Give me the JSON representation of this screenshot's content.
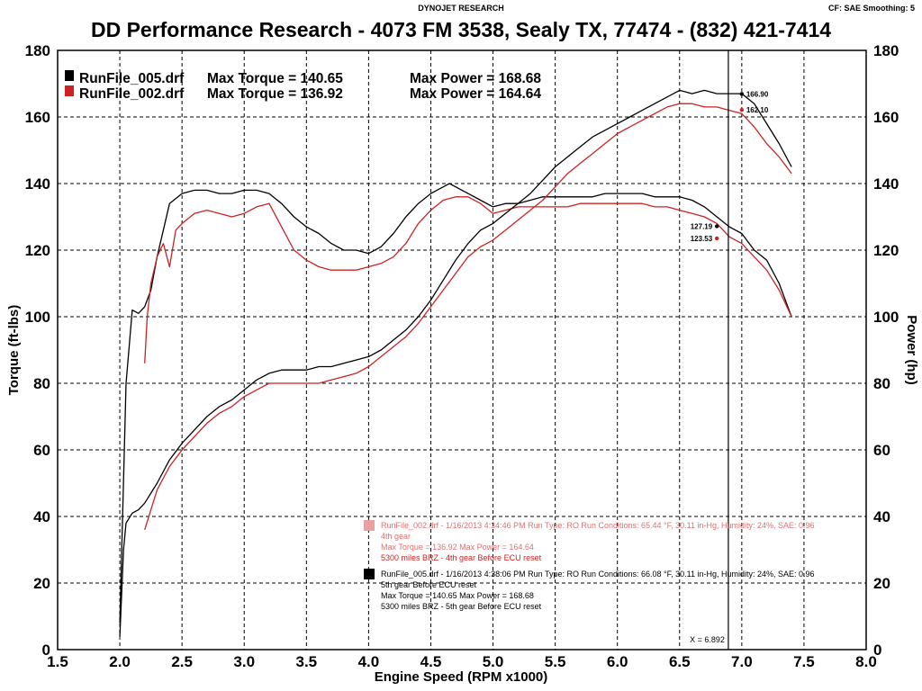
{
  "header": {
    "source": "DYNOJET RESEARCH",
    "settings": "CF: SAE  Smoothing: 5",
    "title": "DD Performance Research - 4073 FM 3538, Sealy TX, 77474 - (832) 421-7414"
  },
  "colors": {
    "run005": "#000000",
    "run002": "#cc2222",
    "run002_light": "#e07070",
    "grid": "#000000"
  },
  "legend_top": [
    {
      "file": "RunFile_005.drf",
      "torque_label": "Max Torque = 140.65",
      "power_label": "Max Power = 168.68",
      "color": "#000000"
    },
    {
      "file": "RunFile_002.drf",
      "torque_label": "Max Torque = 136.92",
      "power_label": "Max Power = 164.64",
      "color": "#cc2222"
    }
  ],
  "notes": [
    {
      "color": "#e07070",
      "lines": [
        "RunFile_002.drf - 1/16/2013 4:34:46 PM  Run Type: RO  Run Conditions: 65.44 °F, 30.11 in-Hg,  Humidity:  24%, SAE: 0.96",
        "4th gear",
        "Max Torque = 136.92  Max Power = 164.64",
        "5300 miles BRZ - 4th gear Before ECU reset"
      ]
    },
    {
      "color": "#000000",
      "lines": [
        "RunFile_005.drf - 1/16/2013 4:38:06 PM  Run Type: RO  Run Conditions: 66.08 °F, 30.11 in-Hg,  Humidity:  24%, SAE: 0.96",
        "5th gear Before ECU reset",
        "Max Torque = 140.65  Max Power = 168.68",
        "5300 miles BRZ - 5th gear Before ECU reset"
      ]
    }
  ],
  "cursor": {
    "x": 6.892,
    "label": "X = 6.892"
  },
  "chart_data": {
    "type": "line",
    "xlabel": "Engine Speed (RPM x1000)",
    "ylabel": "Torque (ft-lbs)",
    "ylabel_right": "Power (hp)",
    "xlim": [
      1.5,
      8.0
    ],
    "ylim": [
      0,
      180
    ],
    "x_ticks": [
      "1.5",
      "2.0",
      "2.5",
      "3.0",
      "3.5",
      "4.0",
      "4.5",
      "5.0",
      "5.5",
      "6.0",
      "6.5",
      "7.0",
      "7.5",
      "8.0"
    ],
    "y_ticks": [
      "0",
      "20",
      "40",
      "60",
      "80",
      "100",
      "120",
      "140",
      "160",
      "180"
    ],
    "grid": true,
    "series": [
      {
        "id": "t005",
        "color": "#000000",
        "x": [
          2.0,
          2.05,
          2.1,
          2.15,
          2.2,
          2.25,
          2.3,
          2.4,
          2.5,
          2.6,
          2.7,
          2.8,
          2.9,
          3.0,
          3.1,
          3.2,
          3.3,
          3.4,
          3.5,
          3.6,
          3.7,
          3.8,
          3.9,
          4.0,
          4.1,
          4.2,
          4.3,
          4.4,
          4.5,
          4.6,
          4.65,
          4.7,
          4.8,
          4.9,
          5.0,
          5.1,
          5.2,
          5.3,
          5.4,
          5.5,
          5.6,
          5.7,
          5.8,
          5.9,
          6.0,
          6.1,
          6.2,
          6.3,
          6.4,
          6.5,
          6.6,
          6.7,
          6.8,
          6.9,
          7.0,
          7.1,
          7.2,
          7.3,
          7.4
        ],
        "y": [
          8,
          80,
          102,
          101,
          103,
          108,
          118,
          134,
          137,
          138,
          138,
          137,
          137,
          138,
          138,
          137,
          134,
          130,
          127,
          125,
          122,
          120,
          120,
          119,
          121,
          125,
          130,
          134,
          137,
          139,
          140,
          139,
          137,
          135,
          133,
          134,
          134,
          135,
          136,
          136,
          136,
          136,
          136,
          137,
          137,
          137,
          137,
          136,
          136,
          136,
          135,
          133,
          130,
          127,
          125,
          120,
          117,
          110,
          100
        ]
      },
      {
        "id": "t002",
        "color": "#cc2222",
        "x": [
          2.2,
          2.22,
          2.25,
          2.3,
          2.35,
          2.4,
          2.45,
          2.5,
          2.6,
          2.7,
          2.8,
          2.9,
          3.0,
          3.1,
          3.2,
          3.3,
          3.4,
          3.5,
          3.6,
          3.7,
          3.8,
          3.9,
          4.0,
          4.1,
          4.2,
          4.3,
          4.4,
          4.5,
          4.6,
          4.7,
          4.8,
          4.9,
          5.0,
          5.1,
          5.2,
          5.3,
          5.4,
          5.5,
          5.6,
          5.7,
          5.8,
          5.9,
          6.0,
          6.1,
          6.2,
          6.3,
          6.4,
          6.5,
          6.6,
          6.7,
          6.8,
          6.9,
          7.0,
          7.1,
          7.2,
          7.3,
          7.4
        ],
        "y": [
          86,
          100,
          110,
          118,
          122,
          115,
          126,
          128,
          131,
          132,
          131,
          130,
          131,
          133,
          134,
          127,
          120,
          117,
          115,
          114,
          114,
          114,
          115,
          116,
          118,
          122,
          128,
          132,
          135,
          136,
          136,
          134,
          131,
          132,
          133,
          133,
          133,
          133,
          133,
          134,
          134,
          134,
          134,
          134,
          134,
          133,
          133,
          132,
          131,
          130,
          128,
          124,
          122,
          118,
          114,
          108,
          100
        ]
      },
      {
        "id": "p005",
        "color": "#000000",
        "x": [
          2.0,
          2.03,
          2.05,
          2.1,
          2.15,
          2.2,
          2.3,
          2.4,
          2.5,
          2.6,
          2.7,
          2.8,
          2.9,
          3.0,
          3.1,
          3.2,
          3.3,
          3.4,
          3.5,
          3.6,
          3.7,
          3.8,
          3.9,
          4.0,
          4.1,
          4.2,
          4.3,
          4.4,
          4.5,
          4.6,
          4.7,
          4.8,
          4.9,
          5.0,
          5.1,
          5.2,
          5.3,
          5.4,
          5.5,
          5.6,
          5.7,
          5.8,
          5.9,
          6.0,
          6.1,
          6.2,
          6.3,
          6.4,
          6.5,
          6.6,
          6.7,
          6.8,
          6.9,
          7.0,
          7.1,
          7.2,
          7.3,
          7.4
        ],
        "y": [
          4,
          30,
          38,
          41,
          42,
          44,
          50,
          57,
          62,
          66,
          70,
          73,
          75,
          78,
          81,
          83,
          84,
          84,
          84,
          85,
          85,
          86,
          87,
          88,
          90,
          93,
          96,
          100,
          105,
          111,
          117,
          122,
          126,
          128,
          131,
          134,
          137,
          141,
          145,
          148,
          151,
          154,
          156,
          158,
          160,
          162,
          164,
          166,
          168,
          167,
          168,
          167,
          167,
          167,
          164,
          158,
          152,
          145
        ]
      },
      {
        "id": "p002",
        "color": "#cc2222",
        "x": [
          2.2,
          2.3,
          2.4,
          2.5,
          2.6,
          2.7,
          2.8,
          2.9,
          3.0,
          3.1,
          3.2,
          3.3,
          3.4,
          3.5,
          3.6,
          3.7,
          3.8,
          3.9,
          4.0,
          4.1,
          4.2,
          4.3,
          4.4,
          4.5,
          4.6,
          4.7,
          4.8,
          4.9,
          5.0,
          5.1,
          5.2,
          5.3,
          5.4,
          5.5,
          5.6,
          5.7,
          5.8,
          5.9,
          6.0,
          6.1,
          6.2,
          6.3,
          6.4,
          6.5,
          6.6,
          6.7,
          6.8,
          6.9,
          7.0,
          7.1,
          7.2,
          7.3,
          7.4
        ],
        "y": [
          36,
          48,
          55,
          60,
          64,
          68,
          71,
          73,
          76,
          78,
          80,
          80,
          80,
          80,
          80,
          81,
          82,
          83,
          85,
          88,
          91,
          94,
          98,
          103,
          108,
          113,
          118,
          121,
          123,
          126,
          129,
          132,
          135,
          139,
          143,
          146,
          149,
          152,
          155,
          157,
          159,
          161,
          163,
          164,
          164,
          163,
          163,
          162,
          161,
          157,
          152,
          148,
          143
        ]
      }
    ],
    "point_labels": [
      {
        "text": "166.90",
        "x": 7.0,
        "y": 166.9,
        "color": "#000000"
      },
      {
        "text": "162.10",
        "x": 7.0,
        "y": 162.1,
        "color": "#cc2222"
      },
      {
        "text": "127.19",
        "x": 6.8,
        "y": 127.19,
        "color": "#000000"
      },
      {
        "text": "123.53",
        "x": 6.8,
        "y": 123.53,
        "color": "#cc2222"
      }
    ]
  }
}
